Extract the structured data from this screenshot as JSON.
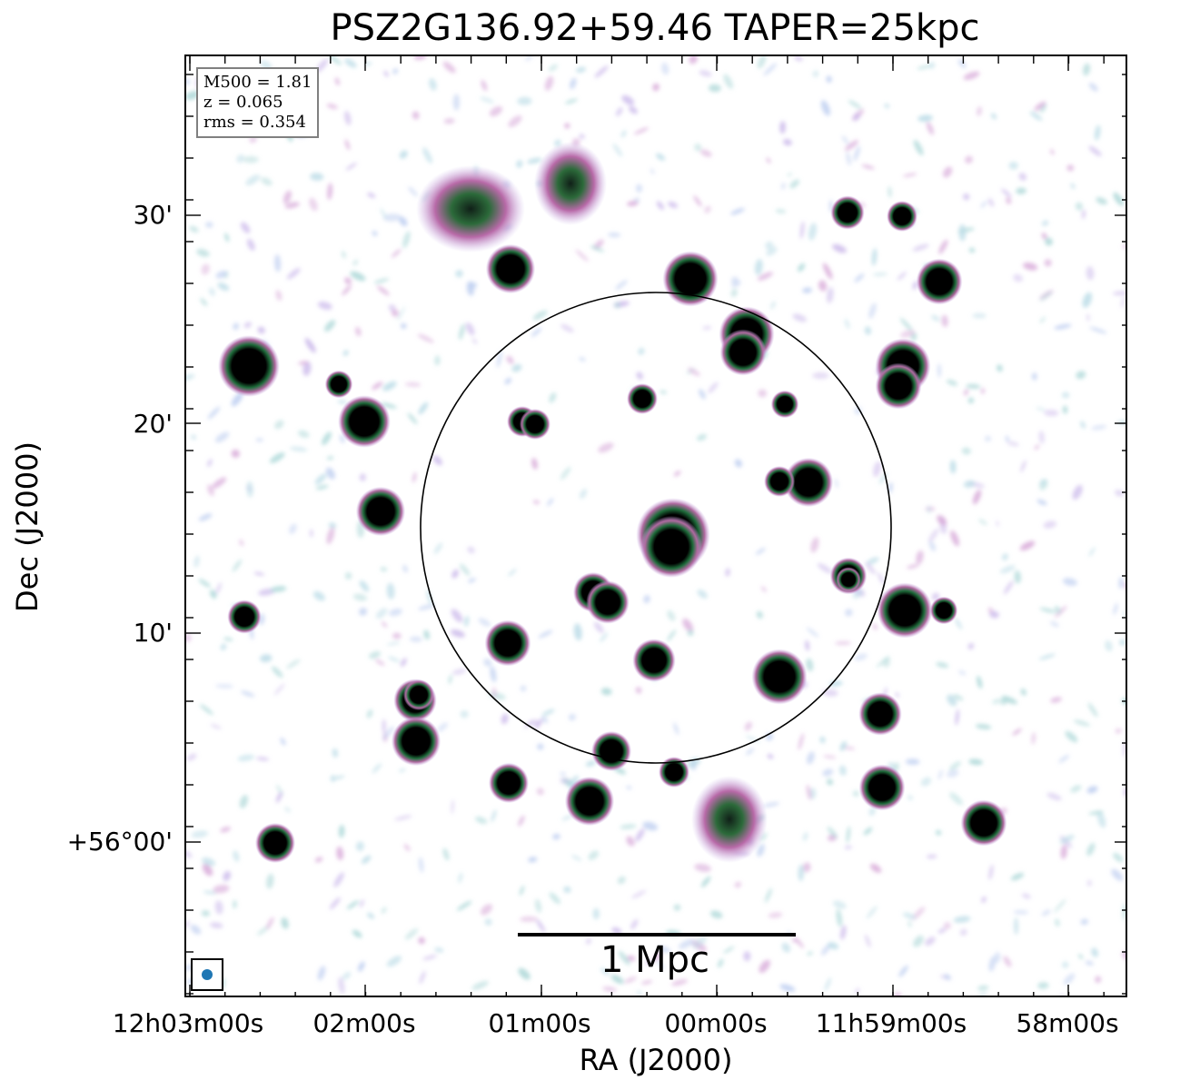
{
  "title": "PSZ2G136.92+59.46 TAPER=25kpc",
  "info": {
    "m500": "M500 = 1.81",
    "z": "z = 0.065",
    "rms": "rms = 0.354"
  },
  "axes": {
    "xlabel": "RA (J2000)",
    "ylabel": "Dec (J2000)",
    "xticks": [
      "12h03m00s",
      "02m00s",
      "01m00s",
      "00m00s",
      "11h59m00s",
      "58m00s"
    ],
    "yticks": [
      "30'",
      "20'",
      "10'",
      "+56°00'"
    ]
  },
  "scalebar": {
    "label": "1 Mpc"
  },
  "colors": {
    "beam": "#1f77b4",
    "halo": "#c8a8e6",
    "core": "#000000",
    "ring": "#1e6b3a"
  }
}
